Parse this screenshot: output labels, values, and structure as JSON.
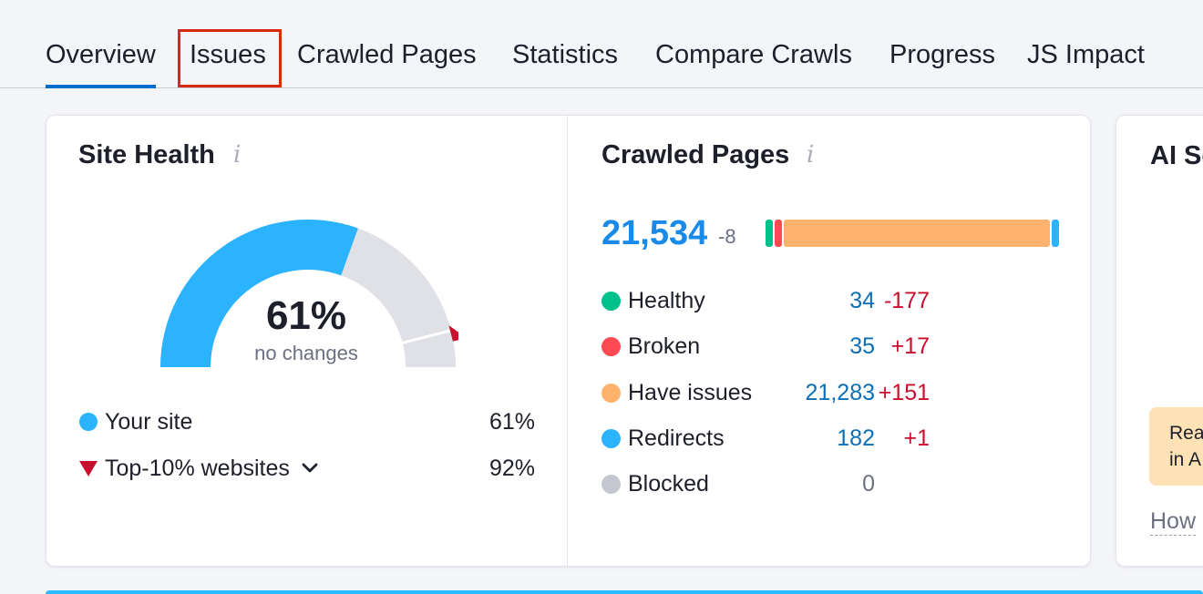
{
  "tabs": [
    {
      "label": "Overview",
      "active": true
    },
    {
      "label": "Issues",
      "active": false,
      "highlighted": true
    },
    {
      "label": "Crawled Pages",
      "active": false
    },
    {
      "label": "Statistics",
      "active": false
    },
    {
      "label": "Compare Crawls",
      "active": false
    },
    {
      "label": "Progress",
      "active": false
    },
    {
      "label": "JS Impact",
      "active": false
    }
  ],
  "site_health": {
    "title": "Site Health",
    "info_icon": "i",
    "value": "61%",
    "value_fraction": 0.61,
    "top10_marker_fraction": 0.92,
    "subtitle": "no changes",
    "legend": {
      "your_site": {
        "label": "Your site",
        "value": "61%"
      },
      "top10": {
        "label": "Top-10% websites",
        "value": "92%"
      }
    },
    "colors": {
      "fill": "#2bb3ff",
      "track": "#e0e1e7",
      "marker": "#c8102e"
    }
  },
  "crawled_pages": {
    "title": "Crawled Pages",
    "info_icon": "i",
    "total": "21,534",
    "total_delta": "-8",
    "rows": [
      {
        "label": "Healthy",
        "value": "34",
        "delta": "-177",
        "color": "#00c08b"
      },
      {
        "label": "Broken",
        "value": "35",
        "delta": "+17",
        "color": "#ff4953"
      },
      {
        "label": "Have issues",
        "value": "21,283",
        "delta": "+151",
        "color": "#ffb26b"
      },
      {
        "label": "Redirects",
        "value": "182",
        "delta": "+1",
        "color": "#2bb3ff"
      },
      {
        "label": "Blocked",
        "value": "0",
        "delta": "",
        "color": "#c4c7cf"
      }
    ]
  },
  "ai_card": {
    "title": "AI Se",
    "box_line1": "Rea",
    "box_line2": "in A",
    "link": "How"
  }
}
